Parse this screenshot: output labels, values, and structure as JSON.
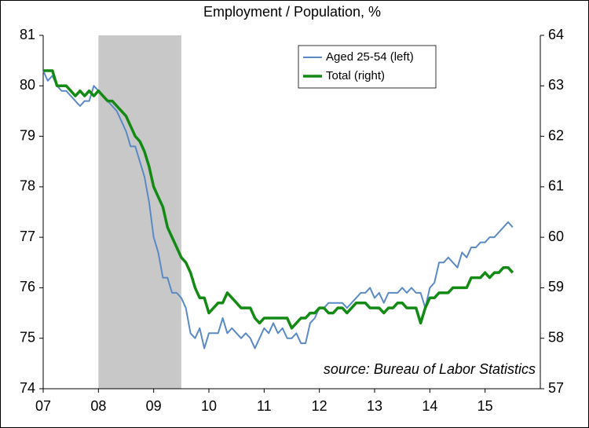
{
  "chart_data": {
    "type": "line",
    "title": "Employment / Population, %",
    "annotation": "source: Bureau of Labor Statistics",
    "x": [
      2007,
      2007.083,
      2007.167,
      2007.25,
      2007.333,
      2007.417,
      2007.5,
      2007.583,
      2007.667,
      2007.75,
      2007.833,
      2007.917,
      2008,
      2008.083,
      2008.167,
      2008.25,
      2008.333,
      2008.417,
      2008.5,
      2008.583,
      2008.667,
      2008.75,
      2008.833,
      2008.917,
      2009,
      2009.083,
      2009.167,
      2009.25,
      2009.333,
      2009.417,
      2009.5,
      2009.583,
      2009.667,
      2009.75,
      2009.833,
      2009.917,
      2010,
      2010.083,
      2010.167,
      2010.25,
      2010.333,
      2010.417,
      2010.5,
      2010.583,
      2010.667,
      2010.75,
      2010.833,
      2010.917,
      2011,
      2011.083,
      2011.167,
      2011.25,
      2011.333,
      2011.417,
      2011.5,
      2011.583,
      2011.667,
      2011.75,
      2011.833,
      2011.917,
      2012,
      2012.083,
      2012.167,
      2012.25,
      2012.333,
      2012.417,
      2012.5,
      2012.583,
      2012.667,
      2012.75,
      2012.833,
      2012.917,
      2013,
      2013.083,
      2013.167,
      2013.25,
      2013.333,
      2013.417,
      2013.5,
      2013.583,
      2013.667,
      2013.75,
      2013.833,
      2013.917,
      2014,
      2014.083,
      2014.167,
      2014.25,
      2014.333,
      2014.417,
      2014.5,
      2014.583,
      2014.667,
      2014.75,
      2014.833,
      2014.917,
      2015,
      2015.083,
      2015.167,
      2015.25,
      2015.333,
      2015.417,
      2015.5
    ],
    "series": [
      {
        "name": "Aged 25-54 (left)",
        "color": "#5a8ac6",
        "axis": "y",
        "values": [
          80.3,
          80.1,
          80.2,
          80.0,
          79.9,
          79.9,
          79.8,
          79.7,
          79.6,
          79.7,
          79.7,
          80.0,
          79.9,
          79.8,
          79.7,
          79.6,
          79.5,
          79.3,
          79.1,
          78.8,
          78.8,
          78.5,
          78.2,
          77.7,
          77.0,
          76.7,
          76.2,
          76.2,
          75.9,
          75.9,
          75.8,
          75.6,
          75.1,
          75.0,
          75.2,
          74.8,
          75.1,
          75.1,
          75.1,
          75.4,
          75.1,
          75.2,
          75.1,
          75.0,
          75.1,
          75.0,
          74.8,
          75.0,
          75.2,
          75.1,
          75.3,
          75.1,
          75.2,
          75.0,
          75.0,
          75.1,
          74.9,
          74.9,
          75.3,
          75.4,
          75.6,
          75.6,
          75.7,
          75.7,
          75.7,
          75.7,
          75.6,
          75.7,
          75.8,
          75.9,
          75.9,
          76.0,
          75.8,
          75.9,
          75.7,
          75.9,
          75.9,
          75.9,
          76.0,
          75.9,
          76.0,
          75.9,
          75.9,
          75.6,
          76.0,
          76.1,
          76.5,
          76.5,
          76.6,
          76.5,
          76.4,
          76.7,
          76.6,
          76.8,
          76.8,
          76.9,
          76.9,
          77.0,
          77.0,
          77.1,
          77.2,
          77.3,
          77.2
        ]
      },
      {
        "name": "Total (right)",
        "color": "#138a13",
        "axis": "y2",
        "values": [
          63.3,
          63.3,
          63.3,
          63.0,
          63.0,
          63.0,
          62.9,
          62.8,
          62.9,
          62.8,
          62.9,
          62.8,
          62.9,
          62.8,
          62.7,
          62.7,
          62.6,
          62.5,
          62.4,
          62.2,
          62.0,
          61.9,
          61.7,
          61.4,
          61.0,
          60.8,
          60.6,
          60.2,
          60.0,
          59.8,
          59.6,
          59.5,
          59.3,
          59.0,
          58.8,
          58.8,
          58.5,
          58.6,
          58.7,
          58.7,
          58.9,
          58.8,
          58.7,
          58.6,
          58.6,
          58.6,
          58.4,
          58.3,
          58.4,
          58.4,
          58.4,
          58.4,
          58.4,
          58.4,
          58.2,
          58.3,
          58.4,
          58.4,
          58.5,
          58.5,
          58.6,
          58.6,
          58.5,
          58.5,
          58.6,
          58.6,
          58.5,
          58.6,
          58.7,
          58.7,
          58.7,
          58.6,
          58.6,
          58.6,
          58.5,
          58.6,
          58.6,
          58.7,
          58.7,
          58.6,
          58.6,
          58.6,
          58.3,
          58.6,
          58.8,
          58.8,
          58.9,
          58.9,
          58.9,
          59.0,
          59.0,
          59.0,
          59.0,
          59.2,
          59.2,
          59.2,
          59.3,
          59.2,
          59.3,
          59.3,
          59.4,
          59.4,
          59.3
        ]
      }
    ],
    "shaded_region": [
      2008,
      2009.5
    ],
    "xlim": [
      2007,
      2016
    ],
    "xticks": [
      {
        "value": 2007,
        "label": "07"
      },
      {
        "value": 2008,
        "label": "08"
      },
      {
        "value": 2009,
        "label": "09"
      },
      {
        "value": 2010,
        "label": "10"
      },
      {
        "value": 2011,
        "label": "11"
      },
      {
        "value": 2012,
        "label": "12"
      },
      {
        "value": 2013,
        "label": "13"
      },
      {
        "value": 2014,
        "label": "14"
      },
      {
        "value": 2015,
        "label": "15"
      }
    ],
    "ylim": [
      74,
      81
    ],
    "yticks": [
      74,
      75,
      76,
      77,
      78,
      79,
      80,
      81
    ],
    "y2lim": [
      57,
      64
    ],
    "y2ticks": [
      57,
      58,
      59,
      60,
      61,
      62,
      63,
      64
    ],
    "legend": "top-right",
    "grid": false
  }
}
